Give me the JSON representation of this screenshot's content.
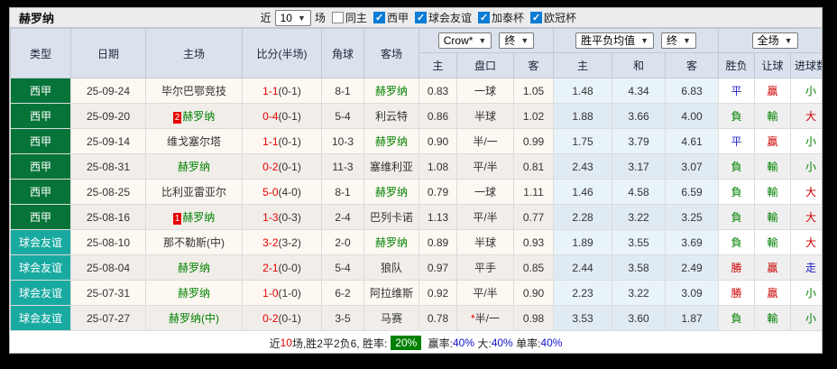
{
  "title": "赫罗纳",
  "topbar": {
    "near_label": "近",
    "count": "10",
    "matches_label": "场",
    "filters": [
      {
        "label": "同主",
        "checked": false
      },
      {
        "label": "西甲",
        "checked": true
      },
      {
        "label": "球会友谊",
        "checked": true
      },
      {
        "label": "加泰杯",
        "checked": true
      },
      {
        "label": "欧冠杯",
        "checked": true
      }
    ]
  },
  "header": {
    "cols": [
      "类型",
      "日期",
      "主场",
      "比分(半场)",
      "角球",
      "客场"
    ],
    "selects": {
      "odds": "Crow*",
      "odds_final": "终",
      "avg": "胜平负均值",
      "avg_final": "终",
      "scope": "全场"
    },
    "sub": [
      "主",
      "盘口",
      "客",
      "主",
      "和",
      "客",
      "胜负",
      "让球",
      "进球数"
    ]
  },
  "rows": [
    {
      "type": "西甲",
      "type_class": "league",
      "date": "25-09-24",
      "rank": "",
      "home": "毕尔巴鄂竞技",
      "home_girona": false,
      "score_ft": "1-1",
      "score_ht": "(0-1)",
      "corner": "8-1",
      "away": "赫罗纳",
      "away_girona": true,
      "odds_home": "0.83",
      "handicap": "一球",
      "handicap_star": false,
      "odds_away": "1.05",
      "avg_home": "1.48",
      "avg_draw": "4.34",
      "avg_away": "6.83",
      "result": "平",
      "result_color": "blue",
      "handicap_result": "贏",
      "handicap_result_color": "red",
      "goals": "小",
      "goals_color": "green"
    },
    {
      "type": "西甲",
      "type_class": "league",
      "date": "25-09-20",
      "rank": "2",
      "home": "赫罗纳",
      "home_girona": true,
      "score_ft": "0-4",
      "score_ht": "(0-1)",
      "corner": "5-4",
      "away": "利云特",
      "away_girona": false,
      "odds_home": "0.86",
      "handicap": "半球",
      "handicap_star": false,
      "odds_away": "1.02",
      "avg_home": "1.88",
      "avg_draw": "3.66",
      "avg_away": "4.00",
      "result": "負",
      "result_color": "green",
      "handicap_result": "輸",
      "handicap_result_color": "green",
      "goals": "大",
      "goals_color": "red"
    },
    {
      "type": "西甲",
      "type_class": "league",
      "date": "25-09-14",
      "rank": "",
      "home": "维戈塞尔塔",
      "home_girona": false,
      "score_ft": "1-1",
      "score_ht": "(0-1)",
      "corner": "10-3",
      "away": "赫罗纳",
      "away_girona": true,
      "odds_home": "0.90",
      "handicap": "半/一",
      "handicap_star": false,
      "odds_away": "0.99",
      "avg_home": "1.75",
      "avg_draw": "3.79",
      "avg_away": "4.61",
      "result": "平",
      "result_color": "blue",
      "handicap_result": "贏",
      "handicap_result_color": "red",
      "goals": "小",
      "goals_color": "green"
    },
    {
      "type": "西甲",
      "type_class": "league",
      "date": "25-08-31",
      "rank": "",
      "home": "赫罗纳",
      "home_girona": true,
      "score_ft": "0-2",
      "score_ht": "(0-1)",
      "corner": "11-3",
      "away": "塞维利亚",
      "away_girona": false,
      "odds_home": "1.08",
      "handicap": "平/半",
      "handicap_star": false,
      "odds_away": "0.81",
      "avg_home": "2.43",
      "avg_draw": "3.17",
      "avg_away": "3.07",
      "result": "負",
      "result_color": "green",
      "handicap_result": "輸",
      "handicap_result_color": "green",
      "goals": "小",
      "goals_color": "green"
    },
    {
      "type": "西甲",
      "type_class": "league",
      "date": "25-08-25",
      "rank": "",
      "home": "比利亚雷亚尔",
      "home_girona": false,
      "score_ft": "5-0",
      "score_ht": "(4-0)",
      "corner": "8-1",
      "away": "赫罗纳",
      "away_girona": true,
      "odds_home": "0.79",
      "handicap": "一球",
      "handicap_star": false,
      "odds_away": "1.11",
      "avg_home": "1.46",
      "avg_draw": "4.58",
      "avg_away": "6.59",
      "result": "負",
      "result_color": "green",
      "handicap_result": "輸",
      "handicap_result_color": "green",
      "goals": "大",
      "goals_color": "red"
    },
    {
      "type": "西甲",
      "type_class": "league",
      "date": "25-08-16",
      "rank": "1",
      "home": "赫罗纳",
      "home_girona": true,
      "score_ft": "1-3",
      "score_ht": "(0-3)",
      "corner": "2-4",
      "away": "巴列卡诺",
      "away_girona": false,
      "odds_home": "1.13",
      "handicap": "平/半",
      "handicap_star": false,
      "odds_away": "0.77",
      "avg_home": "2.28",
      "avg_draw": "3.22",
      "avg_away": "3.25",
      "result": "負",
      "result_color": "green",
      "handicap_result": "輸",
      "handicap_result_color": "green",
      "goals": "大",
      "goals_color": "red"
    },
    {
      "type": "球会友谊",
      "type_class": "friendly",
      "date": "25-08-10",
      "rank": "",
      "home": "那不勒斯(中)",
      "home_girona": false,
      "score_ft": "3-2",
      "score_ht": "(3-2)",
      "corner": "2-0",
      "away": "赫罗纳",
      "away_girona": true,
      "odds_home": "0.89",
      "handicap": "半球",
      "handicap_star": false,
      "odds_away": "0.93",
      "avg_home": "1.89",
      "avg_draw": "3.55",
      "avg_away": "3.69",
      "result": "負",
      "result_color": "green",
      "handicap_result": "輸",
      "handicap_result_color": "green",
      "goals": "大",
      "goals_color": "red"
    },
    {
      "type": "球会友谊",
      "type_class": "friendly",
      "date": "25-08-04",
      "rank": "",
      "home": "赫罗纳",
      "home_girona": true,
      "score_ft": "2-1",
      "score_ht": "(0-0)",
      "corner": "5-4",
      "away": "狼队",
      "away_girona": false,
      "odds_home": "0.97",
      "handicap": "平手",
      "handicap_star": false,
      "odds_away": "0.85",
      "avg_home": "2.44",
      "avg_draw": "3.58",
      "avg_away": "2.49",
      "result": "勝",
      "result_color": "red",
      "handicap_result": "贏",
      "handicap_result_color": "red",
      "goals": "走",
      "goals_color": "blue"
    },
    {
      "type": "球会友谊",
      "type_class": "friendly",
      "date": "25-07-31",
      "rank": "",
      "home": "赫罗纳",
      "home_girona": true,
      "score_ft": "1-0",
      "score_ht": "(1-0)",
      "corner": "6-2",
      "away": "阿拉维斯",
      "away_girona": false,
      "odds_home": "0.92",
      "handicap": "平/半",
      "handicap_star": false,
      "odds_away": "0.90",
      "avg_home": "2.23",
      "avg_draw": "3.22",
      "avg_away": "3.09",
      "result": "勝",
      "result_color": "red",
      "handicap_result": "贏",
      "handicap_result_color": "red",
      "goals": "小",
      "goals_color": "green"
    },
    {
      "type": "球会友谊",
      "type_class": "friendly",
      "date": "25-07-27",
      "rank": "",
      "home": "赫罗纳(中)",
      "home_girona": true,
      "score_ft": "0-2",
      "score_ht": "(0-1)",
      "corner": "3-5",
      "away": "马赛",
      "away_girona": false,
      "odds_home": "0.78",
      "handicap": "半/一",
      "handicap_star": true,
      "odds_away": "0.98",
      "avg_home": "3.53",
      "avg_draw": "3.60",
      "avg_away": "1.87",
      "result": "負",
      "result_color": "green",
      "handicap_result": "輸",
      "handicap_result_color": "green",
      "goals": "小",
      "goals_color": "green"
    }
  ],
  "summary": {
    "parts": [
      {
        "text": "近",
        "color": "dark"
      },
      {
        "text": "10",
        "color": "red"
      },
      {
        "text": "场,胜2平2负6, 胜率:",
        "color": "dark"
      },
      {
        "text": "20%",
        "color": "badge"
      },
      {
        "text": " 赢率:",
        "color": "dark"
      },
      {
        "text": "40%",
        "color": "blue"
      },
      {
        "text": " 大:",
        "color": "dark"
      },
      {
        "text": "40%",
        "color": "blue"
      },
      {
        "text": " 单率:",
        "color": "dark"
      },
      {
        "text": "40%",
        "color": "blue"
      }
    ]
  },
  "colors": {
    "league_green_bg": "#067438",
    "friendly_teal_bg": "#18aaa1",
    "girona_green": "#008000",
    "score_red": "#e60000",
    "win_red": "#cc0000",
    "draw_blue": "#2222cc",
    "lose_green": "#008000",
    "rate_badge_green": "#008000",
    "checkbox_blue": "#0c7cd5",
    "header_bg": "#dbe2ee",
    "avg_col_bg": "#e9f3fa"
  }
}
